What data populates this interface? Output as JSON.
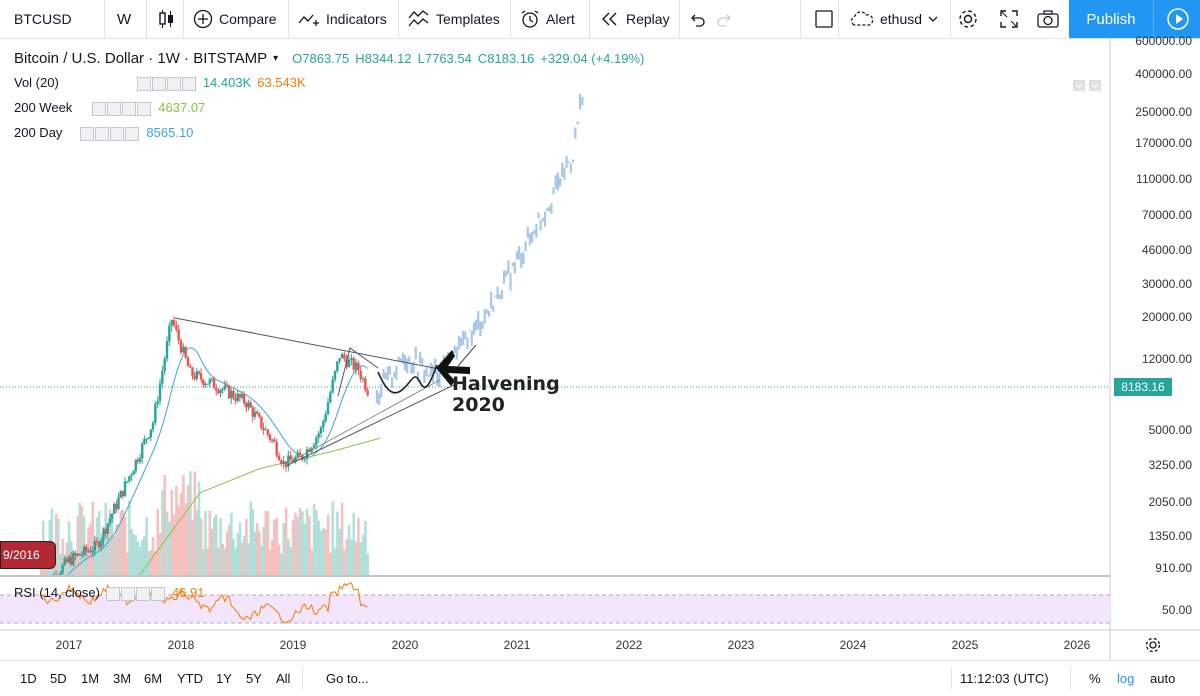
{
  "toolbar": {
    "symbol": "BTCUSD",
    "interval": "W",
    "compare": "Compare",
    "indicators": "Indicators",
    "templates": "Templates",
    "alert": "Alert",
    "replay": "Replay",
    "layout_name": "ethusd",
    "publish": "Publish"
  },
  "legend": {
    "title": "Bitcoin / U.S. Dollar · 1W · BITSTAMP",
    "open": "O7863.75",
    "high": "H8344.12",
    "low": "L7763.54",
    "close": "C8183.16",
    "change": "+329.04 (+4.19%)",
    "studies": [
      {
        "name": "Vol (20)",
        "value1": "14.403K",
        "value2": "63.543K"
      },
      {
        "name": "200 Week",
        "value1": "4637.07"
      },
      {
        "name": "200 Day",
        "value1": "8565.10"
      }
    ],
    "rsi": {
      "name": "RSI (14, close)",
      "value": "46.91"
    }
  },
  "colors": {
    "up": "#26a69a",
    "down": "#ef5350",
    "accent": "#2196f3",
    "projection": "#a8c7e8",
    "ma200w": "#8bc34a",
    "ma200d": "#3fa4d6",
    "rsi_line": "#f57c00",
    "rsi_band": "#f3e5fc"
  },
  "price_axis": [
    "600000.00",
    "400000.00",
    "250000.00",
    "170000.00",
    "110000.00",
    "70000.00",
    "46000.00",
    "30000.00",
    "20000.00",
    "12000.00",
    "8183.16",
    "5000.00",
    "3250.00",
    "2050.00",
    "1350.00",
    "910.00"
  ],
  "rsi_axis": [
    "50.00"
  ],
  "time_axis": [
    "2017",
    "2018",
    "2019",
    "2020",
    "2021",
    "2022",
    "2023",
    "2024",
    "2025",
    "2026"
  ],
  "cursor_date": "9/2016",
  "annotation": {
    "line1": "Halvening",
    "line2": "2020"
  },
  "bottom": {
    "ranges": [
      "1D",
      "5D",
      "1M",
      "3M",
      "6M",
      "YTD",
      "1Y",
      "5Y",
      "All"
    ],
    "goto": "Go to...",
    "clock": "11:12:03 (UTC)",
    "percent": "%",
    "log": "log",
    "auto": "auto"
  },
  "chart_data": {
    "type": "candlestick",
    "x": [
      "2016-10",
      "2017-01",
      "2017-04",
      "2017-07",
      "2017-10",
      "2017-12",
      "2018-02",
      "2018-05",
      "2018-08",
      "2018-11",
      "2018-12",
      "2019-02",
      "2019-04",
      "2019-06",
      "2019-08",
      "2019-09"
    ],
    "close": [
      700,
      1000,
      1200,
      2500,
      5500,
      19500,
      10000,
      8500,
      7000,
      4200,
      3300,
      3600,
      5000,
      12500,
      10500,
      8183.16
    ],
    "projection": [
      {
        "x": "2019-10",
        "y": 7700
      },
      {
        "x": "2020-01",
        "y": 12500
      },
      {
        "x": "2020-04",
        "y": 9800
      },
      {
        "x": "2020-07",
        "y": 14000
      },
      {
        "x": "2020-10",
        "y": 22000
      },
      {
        "x": "2021-01",
        "y": 40000
      },
      {
        "x": "2021-04",
        "y": 75000
      },
      {
        "x": "2021-07",
        "y": 150000
      },
      {
        "x": "2021-08",
        "y": 320000
      }
    ],
    "xlim": [
      "2016-09",
      "2026-06"
    ],
    "ylim": [
      800,
      650000
    ],
    "yscale": "log"
  }
}
